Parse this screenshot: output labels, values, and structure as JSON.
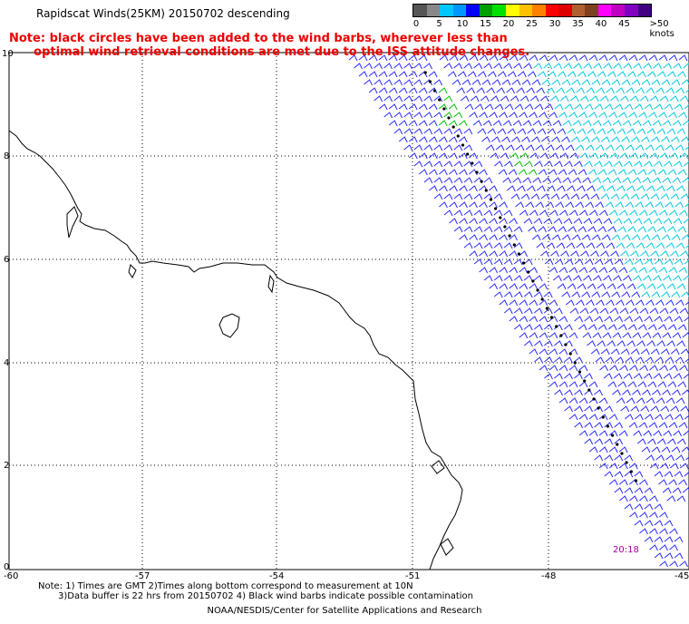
{
  "title": "Rapidscat Winds(25KM) 20150702 descending",
  "note": {
    "line1": "Note: black circles have been added to the wind barbs, wherever less than",
    "line2": "      optimal wind retrieval conditions are met due to the ISS attitude changes."
  },
  "legend": {
    "labels": [
      "0",
      "5",
      "10",
      "15",
      "20",
      "25",
      "30",
      "35",
      "40",
      "45",
      ">50 knots"
    ],
    "colors": [
      "#555555",
      "#888888",
      "#00c8ff",
      "#0096ff",
      "#0000ff",
      "#00a000",
      "#00e000",
      "#ffff00",
      "#ffc000",
      "#ff8000",
      "#ff0000",
      "#e00000",
      "#b06030",
      "#804020",
      "#ff00ff",
      "#c000c0",
      "#8000c0",
      "#400080"
    ]
  },
  "axes": {
    "x_ticks": [
      "-60",
      "-57",
      "-54",
      "-51",
      "-48",
      "-45"
    ],
    "y_ticks": [
      "10",
      "8",
      "6",
      "4",
      "2",
      "0"
    ]
  },
  "timestamp": "20:18",
  "footer": {
    "line1": "Note: 1) Times are GMT 2)Times along bottom correspond to measurement at 10N",
    "line2": "3)Data buffer is 22 hrs from 20150702 4) Black wind barbs indicate possible contamination",
    "line3": "NOAA/NESDIS/Center for Satellite Applications and Research"
  },
  "colors": {
    "barb_blue": "#2a2aff",
    "barb_cyan": "#00c8e0",
    "barb_green": "#00c000",
    "coast": "#000000",
    "grid": "#000000"
  }
}
